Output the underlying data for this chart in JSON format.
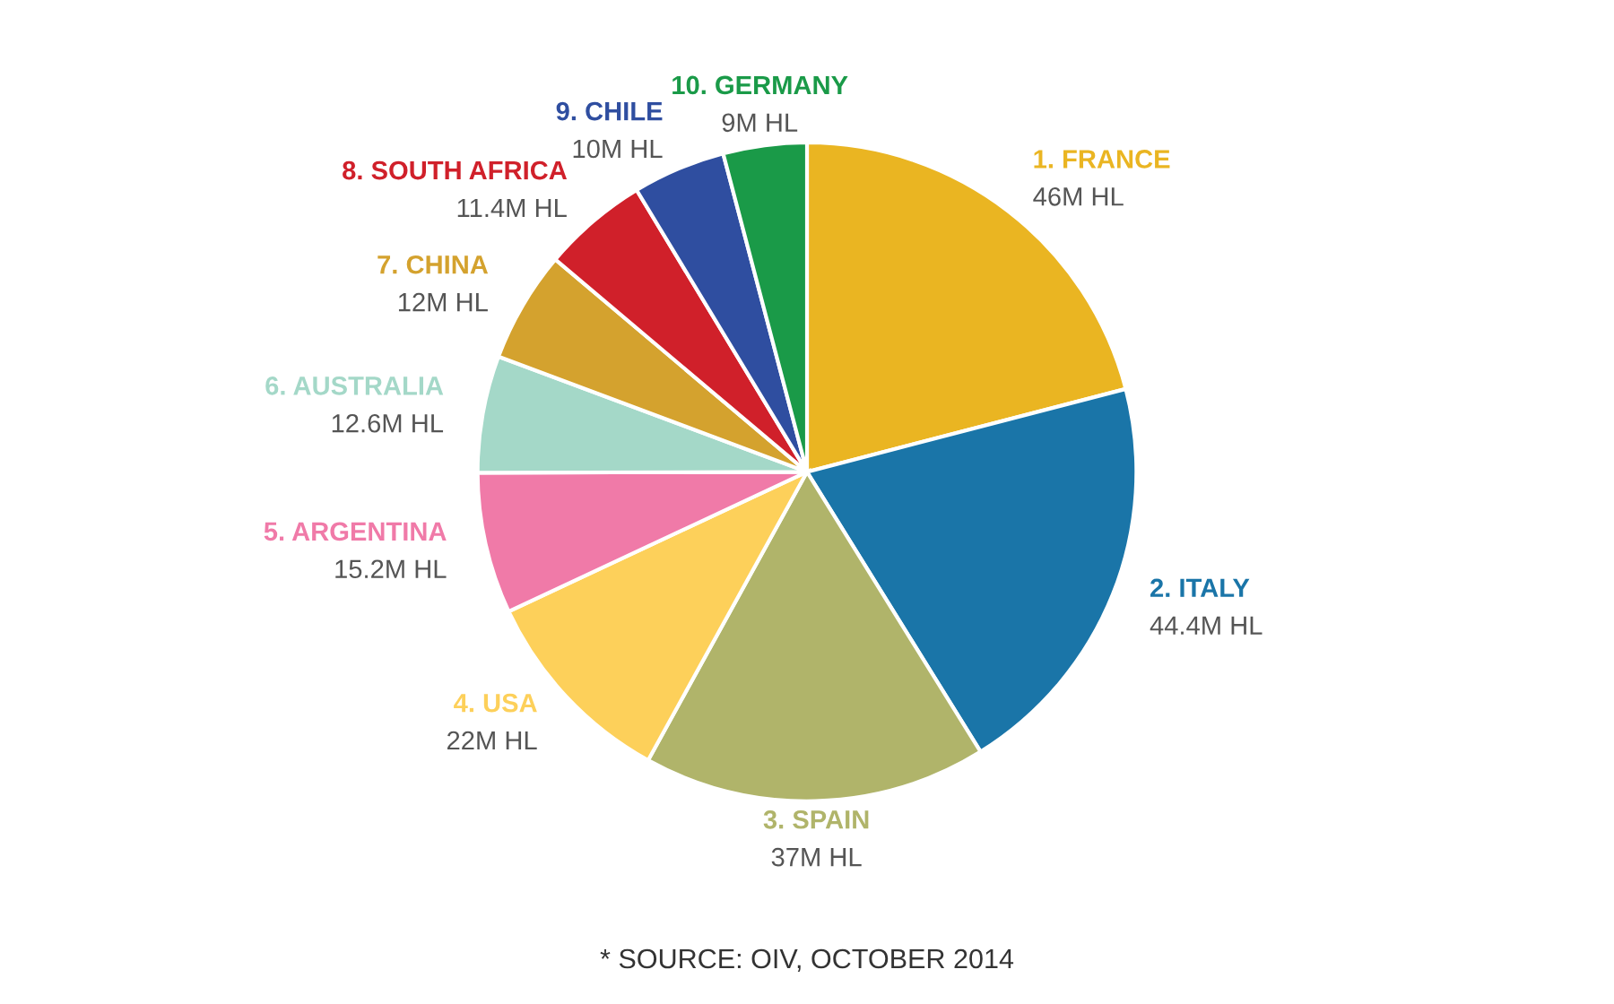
{
  "chart_data": {
    "type": "pie",
    "categories": [
      "1. FRANCE",
      "2. ITALY",
      "3. SPAIN",
      "4. USA",
      "5. ARGENTINA",
      "6. AUSTRALIA",
      "7. CHINA",
      "8. SOUTH AFRICA",
      "9. CHILE",
      "10. GERMANY"
    ],
    "values": [
      46,
      44.4,
      37,
      22,
      15.2,
      12.6,
      12,
      11.4,
      10,
      9
    ],
    "value_labels": [
      "46M HL",
      "44.4M HL",
      "37M HL",
      "22M HL",
      "15.2M HL",
      "12.6M HL",
      "12M HL",
      "11.4M HL",
      "10M HL",
      "9M HL"
    ],
    "colors": [
      "#eab522",
      "#1a75a8",
      "#b0b46a",
      "#fdd05a",
      "#f07aa8",
      "#a4d8c8",
      "#d4a22e",
      "#d0202a",
      "#2f4ea0",
      "#1a9a48"
    ],
    "annotations": [
      "* SOURCE: OIV, OCTOBER 2014"
    ]
  }
}
